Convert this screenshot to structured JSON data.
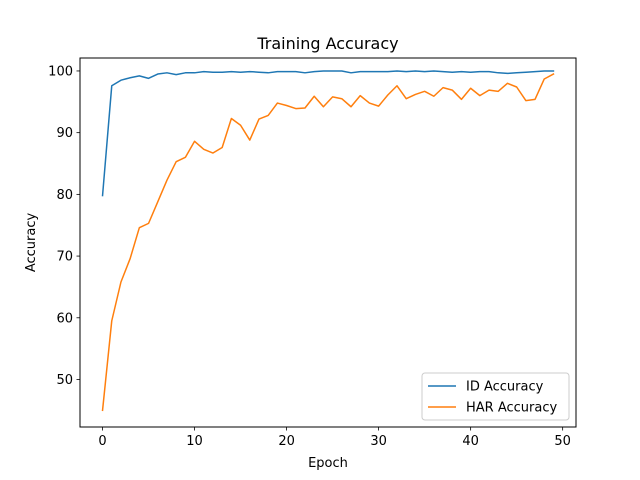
{
  "chart_data": {
    "type": "line",
    "title": "Training Accuracy",
    "xlabel": "Epoch",
    "ylabel": "Accuracy",
    "xlim": [
      -2.45,
      51.45
    ],
    "ylim": [
      42.3,
      102.1
    ],
    "xticks": [
      0,
      10,
      20,
      30,
      40,
      50
    ],
    "yticks": [
      50,
      60,
      70,
      80,
      90,
      100
    ],
    "grid": false,
    "legend_position": "lower-right",
    "x": [
      0,
      1,
      2,
      3,
      4,
      5,
      6,
      7,
      8,
      9,
      10,
      11,
      12,
      13,
      14,
      15,
      16,
      17,
      18,
      19,
      20,
      21,
      22,
      23,
      24,
      25,
      26,
      27,
      28,
      29,
      30,
      31,
      32,
      33,
      34,
      35,
      36,
      37,
      38,
      39,
      40,
      41,
      42,
      43,
      44,
      45,
      46,
      47,
      48,
      49
    ],
    "series": [
      {
        "name": "ID Accuracy",
        "color": "#1f77b4",
        "values": [
          79.8,
          97.6,
          98.5,
          98.9,
          99.2,
          98.8,
          99.5,
          99.7,
          99.4,
          99.7,
          99.7,
          99.9,
          99.8,
          99.8,
          99.9,
          99.8,
          99.9,
          99.8,
          99.7,
          99.9,
          99.9,
          99.9,
          99.7,
          99.9,
          100.0,
          100.0,
          100.0,
          99.7,
          99.9,
          99.9,
          99.9,
          99.9,
          100.0,
          99.9,
          100.0,
          99.9,
          100.0,
          99.9,
          99.8,
          99.9,
          99.8,
          99.9,
          99.9,
          99.7,
          99.6,
          99.7,
          99.8,
          99.9,
          100.0,
          100.0
        ]
      },
      {
        "name": "HAR Accuracy",
        "color": "#ff7f0e",
        "values": [
          45.0,
          59.5,
          65.8,
          69.6,
          74.6,
          75.3,
          78.8,
          82.3,
          85.3,
          86.0,
          88.6,
          87.3,
          86.7,
          87.6,
          92.3,
          91.2,
          88.8,
          92.2,
          92.8,
          94.8,
          94.4,
          93.9,
          94.0,
          95.9,
          94.2,
          95.8,
          95.5,
          94.2,
          96.0,
          94.8,
          94.3,
          96.1,
          97.6,
          95.5,
          96.2,
          96.7,
          95.9,
          97.3,
          96.9,
          95.4,
          97.2,
          96.0,
          96.9,
          96.7,
          98.0,
          97.4,
          95.2,
          95.4,
          98.7,
          99.5
        ]
      }
    ]
  }
}
